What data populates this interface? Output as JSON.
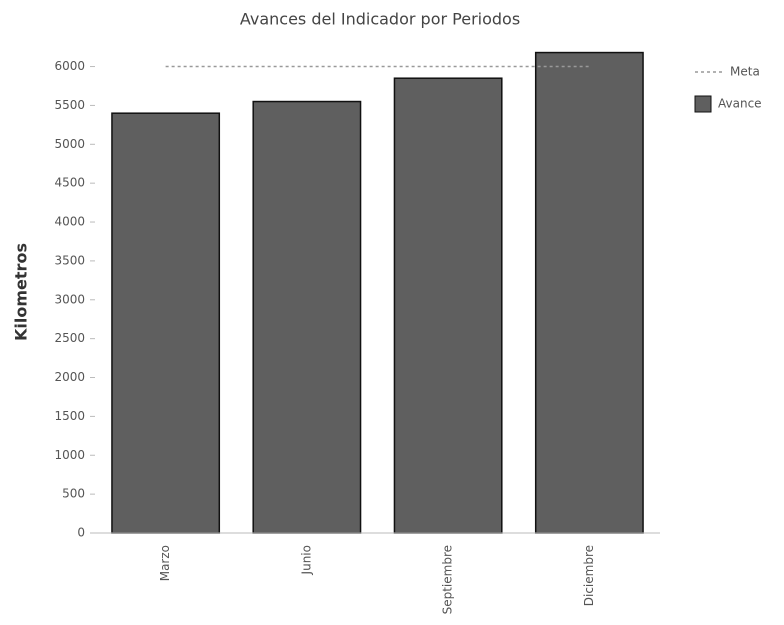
{
  "chart_data": {
    "type": "bar",
    "title": "Avances del Indicador por Periodos",
    "y_label": "Kilometros",
    "categories": [
      "Marzo",
      "Junio",
      "Septiembre",
      "Diciembre"
    ],
    "series": [
      {
        "name": "Meta",
        "type": "line",
        "color": "#999999",
        "values": [
          6000,
          6000,
          6000,
          6000
        ]
      },
      {
        "name": "Avance",
        "type": "bar",
        "color": "#5f5f5f",
        "values": [
          5400,
          5550,
          5850,
          6180
        ]
      }
    ],
    "ylim": [
      0,
      6200
    ],
    "yticks": [
      0,
      500,
      1000,
      1500,
      2000,
      2500,
      3000,
      3500,
      4000,
      4500,
      5000,
      5500,
      6000
    ],
    "grid": false,
    "legend": "right"
  }
}
